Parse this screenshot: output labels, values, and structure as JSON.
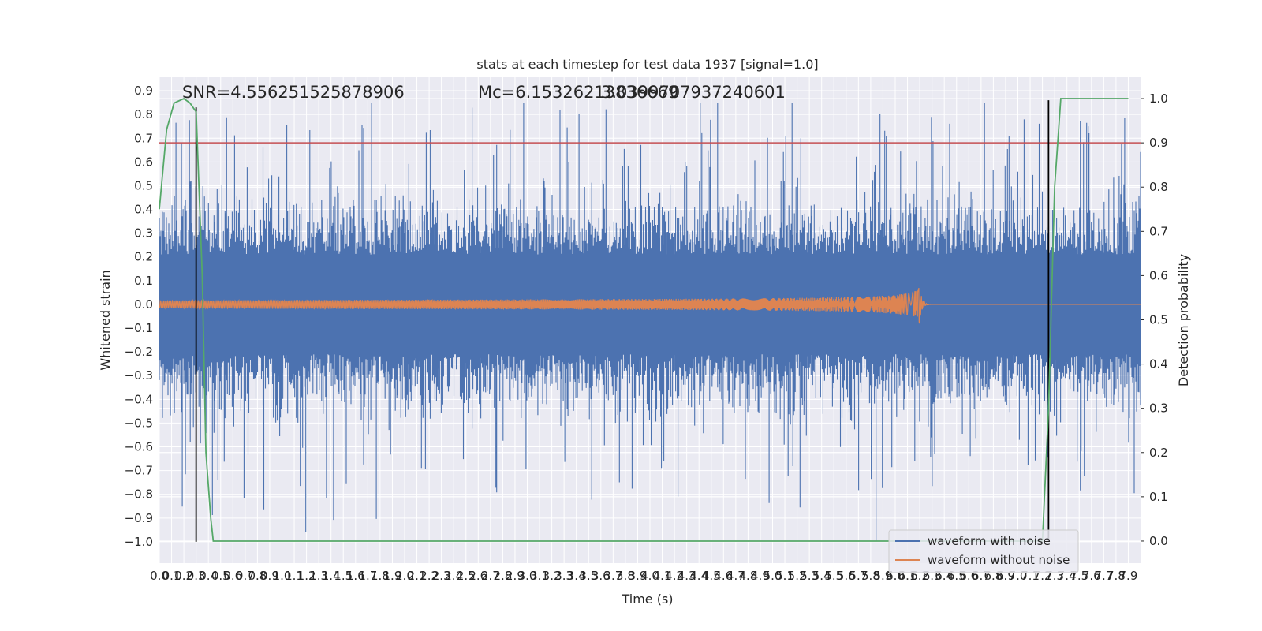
{
  "chart_data": {
    "type": "line",
    "title": "stats at each timestep for test data 1937 [signal=1.0]",
    "xlabel": "Time (s)",
    "ylabel": "Whitened strain",
    "y2label": "Detection probability",
    "xlim": [
      0.0,
      8.0
    ],
    "ylim": [
      -1.09,
      0.96
    ],
    "y2lim": [
      -0.05,
      1.05
    ],
    "grid": true,
    "xticks": [
      0.0,
      0.1,
      0.2,
      0.3,
      0.4,
      0.5,
      0.6,
      0.7,
      0.8,
      0.9,
      1.0,
      1.1,
      1.2,
      1.3,
      1.4,
      1.5,
      1.6,
      1.7,
      1.8,
      1.9,
      2.0,
      2.1,
      2.2,
      2.3,
      2.4,
      2.5,
      2.6,
      2.7,
      2.8,
      2.9,
      3.0,
      3.1,
      3.2,
      3.3,
      3.4,
      3.5,
      3.6,
      3.7,
      3.8,
      3.9,
      4.0,
      4.1,
      4.2,
      4.3,
      4.4,
      4.5,
      4.6,
      4.7,
      4.8,
      4.9,
      5.0,
      5.1,
      5.2,
      5.3,
      5.4,
      5.5,
      5.6,
      5.7,
      5.8,
      5.9,
      6.0,
      6.1,
      6.2,
      6.3,
      6.4,
      6.5,
      6.6,
      6.7,
      6.8,
      6.9,
      7.0,
      7.1,
      7.2,
      7.3,
      7.4,
      7.5,
      7.6,
      7.7,
      7.8,
      7.9
    ],
    "yticks": [
      0.9,
      0.8,
      0.7,
      0.6,
      0.5,
      0.4,
      0.3,
      0.2,
      0.1,
      0.0,
      -0.1,
      -0.2,
      -0.3,
      -0.4,
      -0.5,
      -0.6,
      -0.7,
      -0.8,
      -0.9,
      -1.0
    ],
    "y2ticks": [
      1.0,
      0.9,
      0.8,
      0.7,
      0.6,
      0.5,
      0.4,
      0.3,
      0.2,
      0.1,
      0.0
    ],
    "annotations": [
      {
        "text": "SNR=4.556251525878906",
        "x": 0.2,
        "y": 0.89
      },
      {
        "text": "Mc=6.15326213836669",
        "x": 2.6,
        "y": 0.89
      },
      {
        "text": "3.0399707937240601",
        "x": 3.6,
        "y": 0.89
      }
    ],
    "series": [
      {
        "name": "waveform with noise",
        "color": "#4c72b0",
        "kind": "noise",
        "typical_amplitude": 0.3,
        "peak_max": 0.85,
        "peak_min": -1.0
      },
      {
        "name": "waveform without noise",
        "color": "#dd8452",
        "kind": "chirp",
        "x_start": 0.0,
        "x_merger": 6.2,
        "amplitude_start": 0.01,
        "amplitude_peak": 0.08
      },
      {
        "name": "Detection probability",
        "color": "#55a868",
        "axis": "right",
        "x": [
          0.0,
          0.06,
          0.12,
          0.2,
          0.25,
          0.3,
          0.35,
          0.38,
          0.42,
          0.44,
          7.2,
          7.25,
          7.3,
          7.35,
          7.9
        ],
        "y": [
          0.75,
          0.93,
          0.99,
          1.0,
          0.99,
          0.97,
          0.6,
          0.2,
          0.05,
          0.0,
          0.0,
          0.3,
          0.8,
          1.0,
          1.0
        ]
      }
    ],
    "threshold": {
      "axis": "right",
      "value": 0.9,
      "color": "#c44e52"
    },
    "vlines": [
      {
        "x": 0.3,
        "ymin": -1.0,
        "ymax": 0.83,
        "color": "#000000"
      },
      {
        "x": 7.25,
        "ymin": -1.0,
        "ymax": 0.86,
        "color": "#000000"
      }
    ],
    "legend": {
      "position": "lower-right",
      "entries": [
        "waveform with noise",
        "waveform without noise"
      ]
    }
  }
}
